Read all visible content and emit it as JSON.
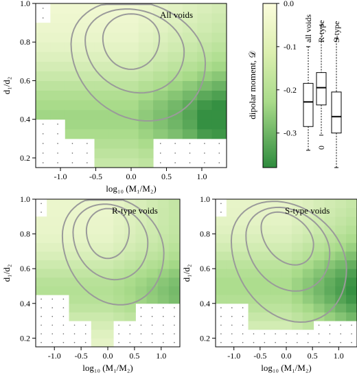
{
  "figure": {
    "colorbar_label": "dipolar moment, 𝒟",
    "colorbar_ticks": [
      "0.0",
      "-0.1",
      "-0.2",
      "-0.3"
    ],
    "colorbar_range": [
      -0.38,
      0.0
    ],
    "colorscale": {
      "high": "#fbfcdc",
      "mid": "#a9db8a",
      "low": "#2e8b3d"
    },
    "contour_color": "#9a9a9a"
  },
  "chart_data": [
    {
      "type": "heatmap",
      "title": "All voids",
      "xlabel": "log₁₀ (M₁/M₂)",
      "ylabel": "d₁/d₂",
      "xlim": [
        -1.35,
        1.35
      ],
      "ylim": [
        0.15,
        1.0
      ],
      "xticks": [
        "-1.0",
        "-0.5",
        "0.0",
        "0.5",
        "1.0"
      ],
      "yticks": [
        "0.2",
        "0.4",
        "0.6",
        "0.8",
        "1.0"
      ],
      "nx": 13,
      "ny": 17,
      "lowest_valued_region": {
        "x_min": 0.9,
        "y_range": [
          0.3,
          0.6
        ],
        "value": -0.32
      },
      "contour_levels": 3
    },
    {
      "type": "heatmap",
      "title": "R-type voids",
      "xlabel": "log₁₀ (M₁/M₂)",
      "ylabel": "d₁/d₂",
      "xlim": [
        -1.35,
        1.35
      ],
      "ylim": [
        0.15,
        1.0
      ],
      "xticks": [
        "-1.0",
        "-0.5",
        "0.0",
        "0.5",
        "1.0"
      ],
      "yticks": [
        "0.2",
        "0.4",
        "0.6",
        "0.8",
        "1.0"
      ],
      "nx": 13,
      "ny": 17,
      "contour_levels": 3
    },
    {
      "type": "heatmap",
      "title": "S-type voids",
      "xlabel": "log₁₀ (M₁/M₂)",
      "ylabel": "d₁/d₂",
      "xlim": [
        -1.35,
        1.35
      ],
      "ylim": [
        0.15,
        1.0
      ],
      "xticks": [
        "-1.0",
        "-0.5",
        "0.0",
        "0.5",
        "1.0"
      ],
      "yticks": [
        "0.2",
        "0.4",
        "0.6",
        "0.8",
        "1.0"
      ],
      "nx": 13,
      "ny": 17,
      "lowest_valued_region": {
        "x_min": 1.0,
        "y_range": [
          0.35,
          0.5
        ],
        "value": -0.33
      },
      "contour_levels": 3
    },
    {
      "type": "box",
      "categories": [
        "all voids",
        "R-type",
        "S-type"
      ],
      "zero_label": "0",
      "ylim": [
        -0.38,
        0.0
      ],
      "boxes": [
        {
          "whisker_low": -0.34,
          "q1": -0.285,
          "median": -0.228,
          "q3": -0.185,
          "whisker_high": -0.1
        },
        {
          "whisker_low": -0.305,
          "q1": -0.235,
          "median": -0.195,
          "q3": -0.16,
          "whisker_high": -0.05
        },
        {
          "whisker_low": -0.38,
          "q1": -0.3,
          "median": -0.262,
          "q3": -0.205,
          "whisker_high": -0.08
        }
      ]
    }
  ]
}
